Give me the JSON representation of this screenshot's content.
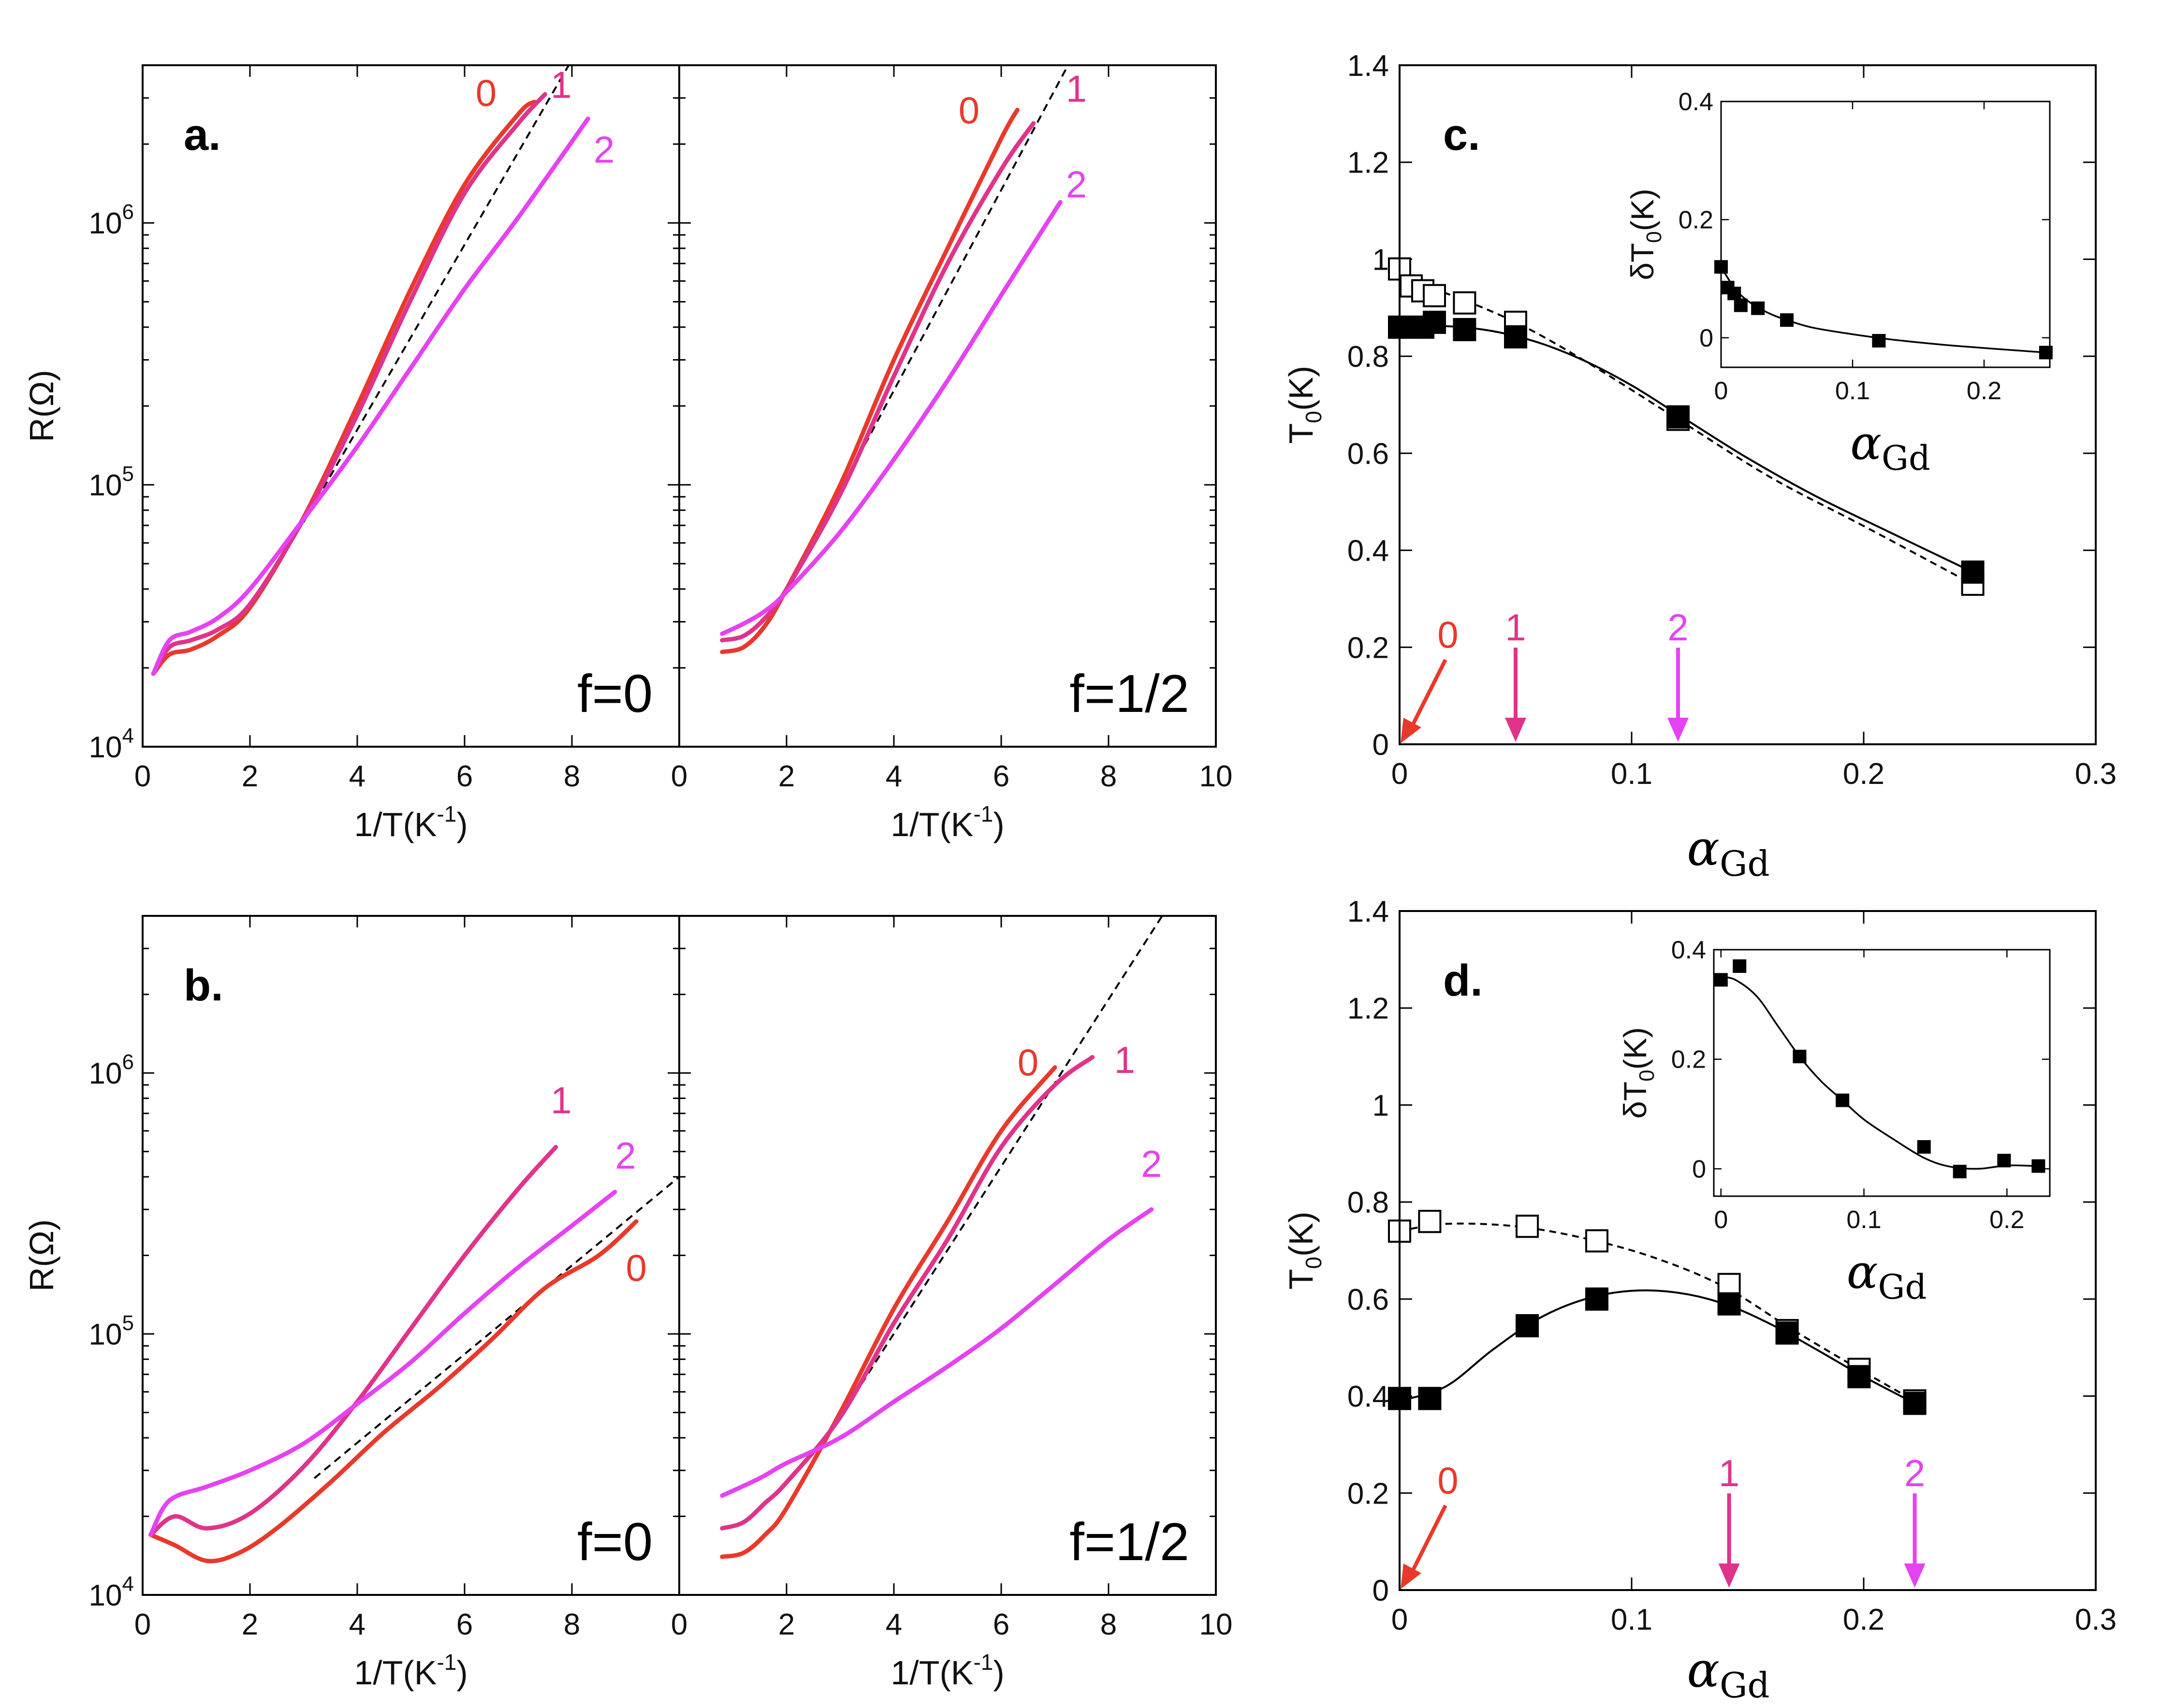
{
  "colors": {
    "c0": "#e8392b",
    "c1": "#e0338a",
    "c2": "#e542f2",
    "axis": "#000000",
    "fit": "#000000"
  },
  "chart_data": [
    {
      "panel": "a.",
      "type": "line",
      "ylabel": "R(Ω)",
      "xlabel": "1/T(K",
      "xlabel_sup": "-1",
      "xlabel_close": ")",
      "ylog": true,
      "ylim": [
        10000,
        4000000
      ],
      "yticks": [
        10000,
        100000,
        1000000
      ],
      "yticks_base": [
        "10",
        "10",
        "10"
      ],
      "yticks_exp": [
        "4",
        "5",
        "6"
      ],
      "subplots": [
        {
          "f_label": "f=0",
          "xlim": [
            0,
            10
          ],
          "xticks": [
            0,
            2,
            4,
            6,
            8
          ],
          "xticklabels": [
            "0",
            "2",
            "4",
            "6",
            "8"
          ],
          "series": [
            {
              "name": "0",
              "label_at": [
                6.4,
                2800000
              ],
              "x": [
                0.2,
                0.5,
                0.9,
                1.4,
                2.0,
                3.0,
                4.0,
                5.0,
                6.0,
                7.0,
                7.3
              ],
              "y": [
                19000,
                22500,
                23500,
                26500,
                34000,
                75000,
                200000,
                560000,
                1400000,
                2600000,
                2900000
              ]
            },
            {
              "name": "1",
              "label_at": [
                7.8,
                3000000
              ],
              "x": [
                0.2,
                0.5,
                0.9,
                1.4,
                2.0,
                3.0,
                4.0,
                5.0,
                6.0,
                7.0,
                7.5
              ],
              "y": [
                19000,
                24000,
                25500,
                28000,
                35000,
                74000,
                185000,
                510000,
                1300000,
                2400000,
                3100000
              ]
            },
            {
              "name": "2",
              "label_at": [
                8.6,
                1700000
              ],
              "x": [
                0.2,
                0.5,
                0.9,
                1.4,
                2.0,
                3.0,
                4.0,
                5.0,
                6.0,
                7.0,
                8.3
              ],
              "y": [
                19000,
                25500,
                27500,
                31000,
                40000,
                74000,
                140000,
                280000,
                560000,
                1050000,
                2500000
              ]
            }
          ],
          "fit": {
            "x": [
              3.0,
              8.0
            ],
            "y": [
              72000,
              4200000
            ]
          }
        },
        {
          "f_label": "f=1/2",
          "xlim": [
            0,
            10
          ],
          "xticks": [
            0,
            2,
            4,
            6,
            8,
            10
          ],
          "xticklabels": [
            "0",
            "2",
            "4",
            "6",
            "8",
            "10"
          ],
          "series": [
            {
              "name": "0",
              "label_at": [
                5.4,
                2400000
              ],
              "x": [
                0.8,
                1.2,
                1.6,
                2.0,
                3.0,
                4.0,
                5.0,
                6.0,
                6.3
              ],
              "y": [
                23000,
                24000,
                29000,
                40000,
                100000,
                300000,
                800000,
                2100000,
                2700000
              ]
            },
            {
              "name": "1",
              "label_at": [
                7.4,
                2900000
              ],
              "x": [
                0.8,
                1.2,
                1.6,
                2.0,
                3.0,
                4.0,
                5.0,
                6.0,
                6.6
              ],
              "y": [
                25500,
                26500,
                31000,
                40000,
                92000,
                260000,
                700000,
                1600000,
                2400000
              ]
            },
            {
              "name": "2",
              "label_at": [
                7.4,
                1250000
              ],
              "x": [
                0.8,
                1.2,
                1.6,
                2.0,
                3.0,
                4.0,
                5.0,
                6.0,
                7.1
              ],
              "y": [
                27000,
                29500,
                33000,
                39000,
                66000,
                125000,
                250000,
                530000,
                1200000
              ]
            }
          ],
          "fit": {
            "x": [
              3.0,
              7.3
            ],
            "y": [
              95000,
              4200000
            ]
          }
        }
      ]
    },
    {
      "panel": "b.",
      "type": "line",
      "ylabel": "R(Ω)",
      "xlabel": "1/T(K",
      "xlabel_sup": "-1",
      "xlabel_close": ")",
      "ylog": true,
      "ylim": [
        10000,
        4000000
      ],
      "yticks": [
        10000,
        100000,
        1000000
      ],
      "yticks_base": [
        "10",
        "10",
        "10"
      ],
      "yticks_exp": [
        "4",
        "5",
        "6"
      ],
      "subplots": [
        {
          "f_label": "f=0",
          "xlim": [
            0,
            10
          ],
          "xticks": [
            0,
            2,
            4,
            6,
            8
          ],
          "xticklabels": [
            "0",
            "2",
            "4",
            "6",
            "8"
          ],
          "series": [
            {
              "name": "0",
              "label_at": [
                9.2,
                160000
              ],
              "x": [
                0.15,
                0.6,
                1.2,
                1.8,
                2.5,
                3.5,
                4.5,
                5.5,
                6.5,
                7.5,
                8.5,
                9.2
              ],
              "y": [
                17000,
                15500,
                13500,
                14500,
                18000,
                27000,
                42000,
                62000,
                95000,
                150000,
                200000,
                270000
              ]
            },
            {
              "name": "1",
              "label_at": [
                7.8,
                700000
              ],
              "x": [
                0.15,
                0.6,
                1.2,
                2.0,
                3.0,
                4.0,
                5.0,
                6.0,
                7.0,
                7.7
              ],
              "y": [
                17000,
                20000,
                18000,
                20500,
                31000,
                55000,
                105000,
                200000,
                360000,
                520000
              ]
            },
            {
              "name": "2",
              "label_at": [
                9.0,
                430000
              ],
              "x": [
                0.15,
                0.5,
                1.2,
                2.0,
                3.0,
                4.0,
                5.0,
                6.0,
                7.0,
                8.0,
                8.8
              ],
              "y": [
                17000,
                23000,
                26000,
                30000,
                38000,
                54000,
                78000,
                120000,
                180000,
                260000,
                350000
              ]
            }
          ],
          "fit": {
            "x": [
              3.2,
              10
            ],
            "y": [
              28000,
              400000
            ]
          }
        },
        {
          "f_label": "f=1/2",
          "xlim": [
            0,
            10
          ],
          "xticks": [
            0,
            2,
            4,
            6,
            8,
            10
          ],
          "xticklabels": [
            "0",
            "2",
            "4",
            "6",
            "8",
            "10"
          ],
          "series": [
            {
              "name": "0",
              "label_at": [
                6.5,
                980000
              ],
              "x": [
                0.8,
                1.2,
                1.6,
                2.0,
                3.0,
                4.0,
                5.0,
                6.0,
                7.0
              ],
              "y": [
                14000,
                14500,
                17000,
                21500,
                50000,
                125000,
                270000,
                600000,
                1050000
              ]
            },
            {
              "name": "1",
              "label_at": [
                8.3,
                1000000
              ],
              "x": [
                0.8,
                1.2,
                1.6,
                2.0,
                3.0,
                4.0,
                5.0,
                6.0,
                7.0,
                7.7
              ],
              "y": [
                18000,
                19000,
                22500,
                27000,
                48000,
                110000,
                230000,
                520000,
                900000,
                1150000
              ]
            },
            {
              "name": "2",
              "label_at": [
                8.8,
                400000
              ],
              "x": [
                0.8,
                1.5,
                2.0,
                3.0,
                4.0,
                5.0,
                6.0,
                7.0,
                8.0,
                8.8
              ],
              "y": [
                24000,
                28000,
                32000,
                40000,
                55000,
                75000,
                105000,
                155000,
                230000,
                300000
              ]
            }
          ],
          "fit": {
            "x": [
              3.0,
              9.0
            ],
            "y": [
              48000,
              4000000
            ]
          }
        }
      ]
    },
    {
      "panel": "c.",
      "type": "scatter",
      "ylabel": "T",
      "ylabel_sub": "0",
      "ylabel_close": "(K)",
      "xlabel": "α",
      "xlabel_sub": "Gd",
      "xlim": [
        0,
        0.3
      ],
      "ylim": [
        0,
        1.4
      ],
      "xticks": [
        0,
        0.1,
        0.2,
        0.3
      ],
      "xticklabels": [
        "0",
        "0.1",
        "0.2",
        "0.3"
      ],
      "yticks": [
        0,
        0.2,
        0.4,
        0.6,
        0.8,
        1.0,
        1.2,
        1.4
      ],
      "yticklabels": [
        "0",
        "0.2",
        "0.4",
        "0.6",
        "0.8",
        "1",
        "1.2",
        "1.4"
      ],
      "filled": {
        "x": [
          0.0,
          0.005,
          0.01,
          0.015,
          0.028,
          0.05,
          0.12,
          0.247
        ],
        "y": [
          0.86,
          0.86,
          0.86,
          0.87,
          0.855,
          0.84,
          0.675,
          0.355
        ]
      },
      "open": {
        "x": [
          0.0,
          0.005,
          0.01,
          0.015,
          0.028,
          0.05,
          0.12,
          0.247
        ],
        "y": [
          0.98,
          0.945,
          0.935,
          0.925,
          0.91,
          0.87,
          0.67,
          0.33
        ]
      },
      "filled_curve": {
        "x": [
          0.0,
          0.02,
          0.04,
          0.06,
          0.08,
          0.1,
          0.12,
          0.15,
          0.18,
          0.21,
          0.247
        ],
        "y": [
          0.86,
          0.862,
          0.852,
          0.828,
          0.79,
          0.74,
          0.68,
          0.59,
          0.51,
          0.44,
          0.355
        ]
      },
      "open_curve": {
        "x": [
          0.0,
          0.02,
          0.05,
          0.08,
          0.12,
          0.16,
          0.2,
          0.247
        ],
        "y": [
          0.96,
          0.93,
          0.87,
          0.79,
          0.67,
          0.55,
          0.45,
          0.33
        ]
      },
      "markers": [
        {
          "label": "0",
          "x": 0.0,
          "color": "c0"
        },
        {
          "label": "1",
          "x": 0.05,
          "color": "c1"
        },
        {
          "label": "2",
          "x": 0.12,
          "color": "c2"
        }
      ],
      "inset": {
        "ylabel": "δT",
        "ylabel_sub": "0",
        "ylabel_close": "(K)",
        "xlabel": "α",
        "xlabel_sub": "Gd",
        "xlim": [
          0,
          0.25
        ],
        "ylim": [
          -0.05,
          0.4
        ],
        "xticks": [
          0,
          0.1,
          0.2
        ],
        "xticklabels": [
          "0",
          "0.1",
          "0.2"
        ],
        "yticks": [
          0,
          0.2,
          0.4
        ],
        "yticklabels": [
          "0",
          "0.2",
          "0.4"
        ],
        "points": {
          "x": [
            0.0,
            0.005,
            0.01,
            0.015,
            0.028,
            0.05,
            0.12,
            0.247
          ],
          "y": [
            0.12,
            0.085,
            0.075,
            0.055,
            0.05,
            0.03,
            -0.005,
            -0.025
          ]
        },
        "curve": {
          "x": [
            0.0,
            0.01,
            0.02,
            0.035,
            0.05,
            0.07,
            0.1,
            0.13,
            0.17,
            0.21,
            0.247
          ],
          "y": [
            0.12,
            0.085,
            0.063,
            0.043,
            0.03,
            0.017,
            0.006,
            -0.003,
            -0.012,
            -0.019,
            -0.025
          ]
        }
      }
    },
    {
      "panel": "d.",
      "type": "scatter",
      "ylabel": "T",
      "ylabel_sub": "0",
      "ylabel_close": "(K)",
      "xlabel": "α",
      "xlabel_sub": "Gd",
      "xlim": [
        0,
        0.3
      ],
      "ylim": [
        0,
        1.4
      ],
      "xticks": [
        0,
        0.1,
        0.2,
        0.3
      ],
      "xticklabels": [
        "0",
        "0.1",
        "0.2",
        "0.3"
      ],
      "yticks": [
        0,
        0.2,
        0.4,
        0.6,
        0.8,
        1.0,
        1.2,
        1.4
      ],
      "yticklabels": [
        "0",
        "0.2",
        "0.4",
        "0.6",
        "0.8",
        "1",
        "1.2",
        "1.4"
      ],
      "filled": {
        "x": [
          0.0,
          0.013,
          0.055,
          0.085,
          0.142,
          0.167,
          0.198,
          0.222
        ],
        "y": [
          0.395,
          0.395,
          0.545,
          0.6,
          0.59,
          0.53,
          0.44,
          0.385
        ]
      },
      "open": {
        "x": [
          0.0,
          0.013,
          0.055,
          0.085,
          0.142,
          0.167,
          0.198,
          0.222
        ],
        "y": [
          0.74,
          0.76,
          0.75,
          0.72,
          0.63,
          0.535,
          0.455,
          0.39
        ]
      },
      "filled_curve": {
        "x": [
          0.0,
          0.02,
          0.04,
          0.06,
          0.08,
          0.1,
          0.12,
          0.14,
          0.16,
          0.18,
          0.2,
          0.222
        ],
        "y": [
          0.39,
          0.42,
          0.495,
          0.56,
          0.6,
          0.617,
          0.613,
          0.59,
          0.548,
          0.495,
          0.44,
          0.385
        ]
      },
      "open_curve": {
        "x": [
          0.0,
          0.02,
          0.05,
          0.08,
          0.11,
          0.14,
          0.17,
          0.2,
          0.222
        ],
        "y": [
          0.74,
          0.755,
          0.75,
          0.725,
          0.685,
          0.625,
          0.535,
          0.45,
          0.39
        ]
      },
      "markers": [
        {
          "label": "0",
          "x": 0.0,
          "color": "c0"
        },
        {
          "label": "1",
          "x": 0.142,
          "color": "c1"
        },
        {
          "label": "2",
          "x": 0.222,
          "color": "c2"
        }
      ],
      "inset": {
        "ylabel": "δT",
        "ylabel_sub": "0",
        "ylabel_close": "(K)",
        "xlabel": "α",
        "xlabel_sub": "Gd",
        "xlim": [
          -0.005,
          0.23
        ],
        "ylim": [
          -0.05,
          0.4
        ],
        "xticks": [
          0,
          0.1,
          0.2
        ],
        "xticklabels": [
          "0",
          "0.1",
          "0.2"
        ],
        "yticks": [
          0,
          0.2,
          0.4
        ],
        "yticklabels": [
          "0",
          "0.2",
          "0.4"
        ],
        "points": {
          "x": [
            0.0,
            0.013,
            0.055,
            0.085,
            0.142,
            0.167,
            0.198,
            0.222
          ],
          "y": [
            0.345,
            0.37,
            0.205,
            0.125,
            0.04,
            -0.005,
            0.015,
            0.005
          ]
        },
        "curve": {
          "x": [
            0.0,
            0.01,
            0.025,
            0.04,
            0.055,
            0.07,
            0.085,
            0.1,
            0.12,
            0.142,
            0.16,
            0.18,
            0.2,
            0.222
          ],
          "y": [
            0.35,
            0.345,
            0.315,
            0.26,
            0.205,
            0.16,
            0.125,
            0.09,
            0.055,
            0.02,
            0.004,
            0.0,
            0.006,
            0.005
          ]
        }
      }
    }
  ]
}
